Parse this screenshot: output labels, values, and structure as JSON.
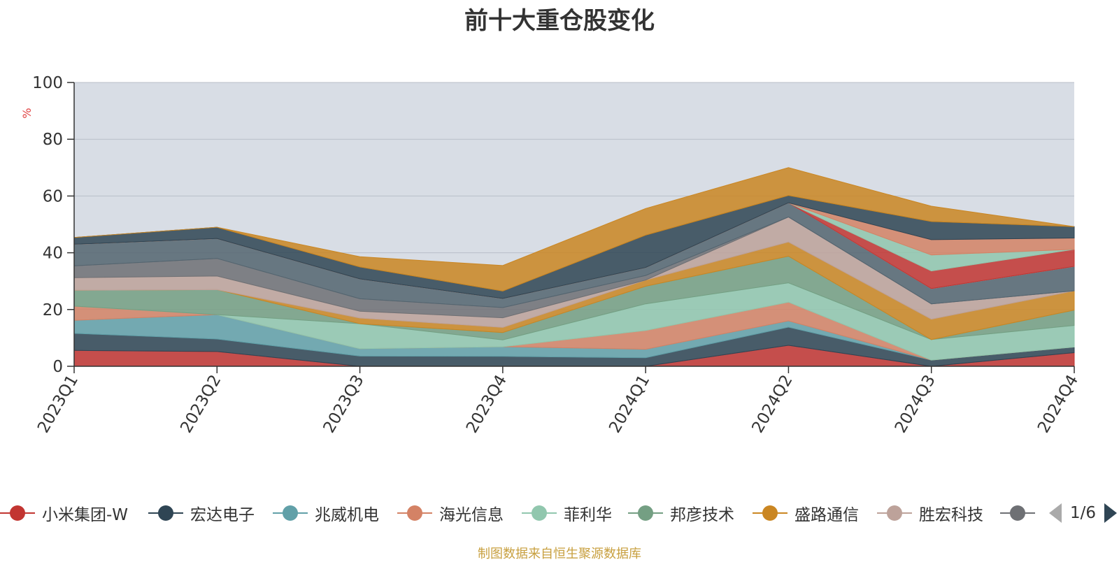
{
  "chart_data": {
    "type": "area",
    "title": "前十大重仓股变化",
    "ylabel": "%",
    "ylim": [
      0,
      100
    ],
    "yticks": [
      0,
      20,
      40,
      60,
      80,
      100
    ],
    "categories": [
      "2023Q1",
      "2023Q2",
      "2023Q3",
      "2023Q4",
      "2024Q1",
      "2024Q2",
      "2024Q3",
      "2024Q4"
    ],
    "stacked": true,
    "grid": true,
    "series": [
      {
        "name": "小米集团-W",
        "color": "#c23531",
        "values": [
          5.6,
          5.2,
          0,
          0,
          0,
          7.4,
          0,
          4.8
        ]
      },
      {
        "name": "宏达电子",
        "color": "#2f4554",
        "values": [
          6.0,
          4.4,
          3.6,
          3.5,
          3.0,
          6.4,
          2.2,
          2.0
        ]
      },
      {
        "name": "兆威机电",
        "color": "#61a0a8",
        "values": [
          4.6,
          8.6,
          2.6,
          3.4,
          3.0,
          2.2,
          0,
          0
        ]
      },
      {
        "name": "海光信息",
        "color": "#d48265",
        "values": [
          5.0,
          0,
          0,
          0,
          6.6,
          6.6,
          0,
          0
        ]
      },
      {
        "name": "菲利华",
        "color": "#91c7ae",
        "values": [
          0,
          0,
          8.8,
          2.4,
          9.4,
          6.8,
          7.2,
          7.6
        ]
      },
      {
        "name": "邦彦技术",
        "color": "#749f83",
        "values": [
          5.6,
          8.8,
          0,
          2.6,
          6.2,
          9.4,
          0,
          5.4
        ]
      },
      {
        "name": "盛路通信",
        "color": "#ca8622",
        "values": [
          0,
          0,
          2.0,
          1.8,
          2.2,
          5.0,
          7.2,
          6.8
        ]
      },
      {
        "name": "胜宏科技",
        "color": "#bda29a",
        "values": [
          4.4,
          4.8,
          2.4,
          3.4,
          0,
          8.8,
          5.4,
          0
        ]
      },
      {
        "name": "",
        "color": "#6e7074",
        "values": [
          4.2,
          6.2,
          4.4,
          3.6,
          1.6,
          0,
          0,
          0
        ]
      },
      {
        "name": "",
        "color": "#546570",
        "values": [
          7.6,
          7.0,
          7.0,
          3.2,
          2.8,
          5.0,
          5.4,
          8.6
        ]
      },
      {
        "name": "",
        "color": "#c4ccd3",
        "values": [
          0,
          0,
          0,
          0,
          0,
          0,
          0,
          0
        ]
      },
      {
        "name": "",
        "color": "#c23531",
        "values": [
          0,
          0,
          0,
          0,
          0,
          0,
          6.2,
          6.0
        ]
      },
      {
        "name": "",
        "color": "#91c7ae",
        "values": [
          0,
          0,
          0,
          0,
          0,
          0,
          5.6,
          0
        ]
      },
      {
        "name": "",
        "color": "#d48265",
        "values": [
          0,
          0,
          0,
          0,
          0,
          0,
          5.4,
          4.0
        ]
      },
      {
        "name": "",
        "color": "#2f4554",
        "values": [
          2.4,
          4.0,
          4.2,
          2.6,
          11.4,
          2.6,
          6.4,
          4.0
        ]
      },
      {
        "name": "",
        "color": "#ca8622",
        "values": [
          0,
          0,
          3.6,
          9.0,
          9.4,
          9.8,
          5.4,
          0
        ]
      }
    ],
    "legend_position": "bottom",
    "legend_page": "1/6"
  },
  "source_note": "制图数据来自恒生聚源数据库"
}
